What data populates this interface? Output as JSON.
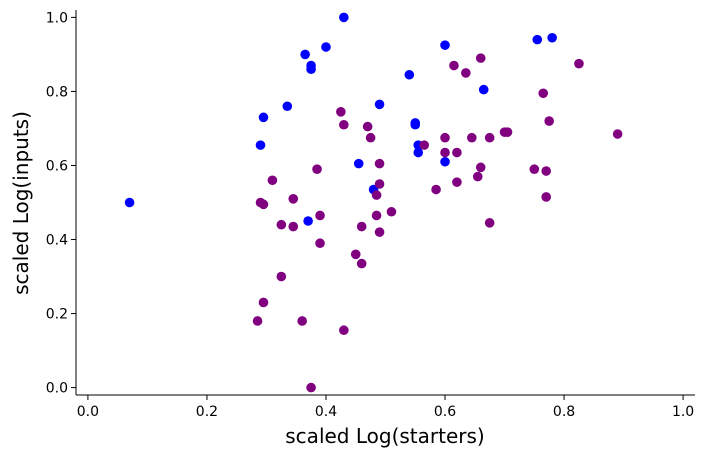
{
  "chart_data": {
    "type": "scatter",
    "title": "",
    "xlabel": "scaled Log(starters)",
    "ylabel": "scaled Log(inputs)",
    "xlim": [
      -0.02,
      1.02
    ],
    "ylim": [
      -0.02,
      1.02
    ],
    "xticks": [
      0.0,
      0.2,
      0.4,
      0.6,
      0.8,
      1.0
    ],
    "yticks": [
      0.0,
      0.2,
      0.4,
      0.6,
      0.8,
      1.0
    ],
    "tick_labels": [
      "0.0",
      "0.2",
      "0.4",
      "0.6",
      "0.8",
      "1.0"
    ],
    "series": [
      {
        "name": "blue",
        "color": "#0000ff",
        "points": [
          [
            0.07,
            0.5
          ],
          [
            0.43,
            1.0
          ],
          [
            0.4,
            0.92
          ],
          [
            0.365,
            0.9
          ],
          [
            0.375,
            0.87
          ],
          [
            0.375,
            0.86
          ],
          [
            0.295,
            0.73
          ],
          [
            0.29,
            0.655
          ],
          [
            0.335,
            0.76
          ],
          [
            0.49,
            0.765
          ],
          [
            0.54,
            0.845
          ],
          [
            0.6,
            0.925
          ],
          [
            0.665,
            0.805
          ],
          [
            0.755,
            0.94
          ],
          [
            0.78,
            0.945
          ],
          [
            0.55,
            0.715
          ],
          [
            0.55,
            0.71
          ],
          [
            0.555,
            0.655
          ],
          [
            0.555,
            0.635
          ],
          [
            0.6,
            0.61
          ],
          [
            0.455,
            0.605
          ],
          [
            0.48,
            0.535
          ],
          [
            0.37,
            0.45
          ]
        ]
      },
      {
        "name": "purple",
        "color": "#800080",
        "points": [
          [
            0.425,
            0.745
          ],
          [
            0.43,
            0.71
          ],
          [
            0.47,
            0.705
          ],
          [
            0.475,
            0.675
          ],
          [
            0.49,
            0.605
          ],
          [
            0.385,
            0.59
          ],
          [
            0.31,
            0.56
          ],
          [
            0.49,
            0.55
          ],
          [
            0.485,
            0.52
          ],
          [
            0.29,
            0.5
          ],
          [
            0.295,
            0.495
          ],
          [
            0.345,
            0.51
          ],
          [
            0.325,
            0.44
          ],
          [
            0.345,
            0.435
          ],
          [
            0.39,
            0.465
          ],
          [
            0.46,
            0.435
          ],
          [
            0.485,
            0.465
          ],
          [
            0.51,
            0.475
          ],
          [
            0.49,
            0.42
          ],
          [
            0.39,
            0.39
          ],
          [
            0.45,
            0.36
          ],
          [
            0.46,
            0.335
          ],
          [
            0.325,
            0.3
          ],
          [
            0.295,
            0.23
          ],
          [
            0.285,
            0.18
          ],
          [
            0.36,
            0.18
          ],
          [
            0.43,
            0.155
          ],
          [
            0.375,
            0.0
          ],
          [
            0.565,
            0.655
          ],
          [
            0.6,
            0.675
          ],
          [
            0.6,
            0.635
          ],
          [
            0.62,
            0.635
          ],
          [
            0.585,
            0.535
          ],
          [
            0.62,
            0.555
          ],
          [
            0.615,
            0.87
          ],
          [
            0.635,
            0.85
          ],
          [
            0.66,
            0.89
          ],
          [
            0.645,
            0.675
          ],
          [
            0.675,
            0.675
          ],
          [
            0.66,
            0.595
          ],
          [
            0.655,
            0.57
          ],
          [
            0.675,
            0.445
          ],
          [
            0.7,
            0.69
          ],
          [
            0.705,
            0.69
          ],
          [
            0.75,
            0.59
          ],
          [
            0.765,
            0.795
          ],
          [
            0.775,
            0.72
          ],
          [
            0.77,
            0.585
          ],
          [
            0.77,
            0.515
          ],
          [
            0.825,
            0.875
          ],
          [
            0.89,
            0.685
          ]
        ]
      }
    ]
  }
}
